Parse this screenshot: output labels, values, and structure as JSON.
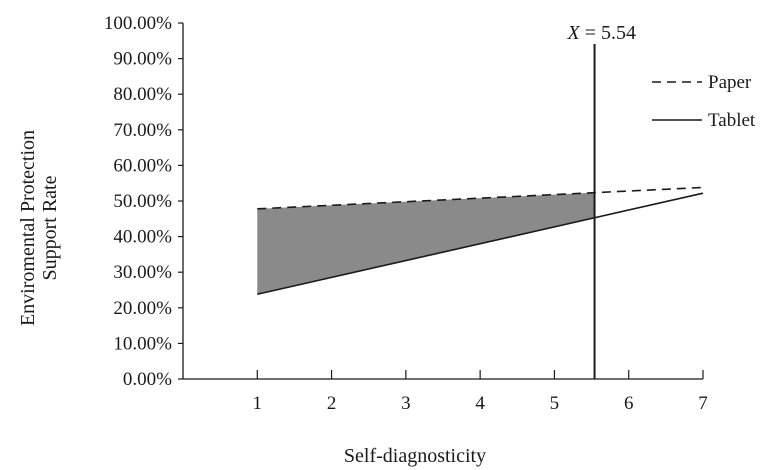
{
  "chart_data": {
    "type": "line",
    "title": "",
    "xlabel": "Self-diagnosticity",
    "ylabel": [
      "Enviromental Protection",
      "Support Rate"
    ],
    "xlim": [
      0,
      7
    ],
    "ylim": [
      0,
      100
    ],
    "x_ticks": [
      1,
      2,
      3,
      4,
      5,
      6,
      7
    ],
    "y_ticks": [
      0,
      10,
      20,
      30,
      40,
      50,
      60,
      70,
      80,
      90,
      100
    ],
    "y_tick_labels": [
      "0.00%",
      "10.00%",
      "20.00%",
      "30.00%",
      "40.00%",
      "50.00%",
      "60.00%",
      "70.00%",
      "80.00%",
      "90.00%",
      "100.00%"
    ],
    "series": [
      {
        "name": "Paper",
        "style": "dashed",
        "x": [
          1,
          7
        ],
        "y": [
          47.8,
          53.8
        ]
      },
      {
        "name": "Tablet",
        "style": "solid",
        "x": [
          1,
          7
        ],
        "y": [
          23.8,
          52.2
        ]
      }
    ],
    "shaded_region": {
      "x_from": 1,
      "x_to": 5.54,
      "between": [
        "Paper",
        "Tablet"
      ],
      "color": "#8a8a8a"
    },
    "vertical_marker": {
      "x": 5.54,
      "var": "X",
      "label": " = 5.54"
    },
    "legend_position": "top-right",
    "grid": false,
    "colors": {
      "line": "#1a1a1a",
      "shade": "#8a8a8a"
    }
  }
}
